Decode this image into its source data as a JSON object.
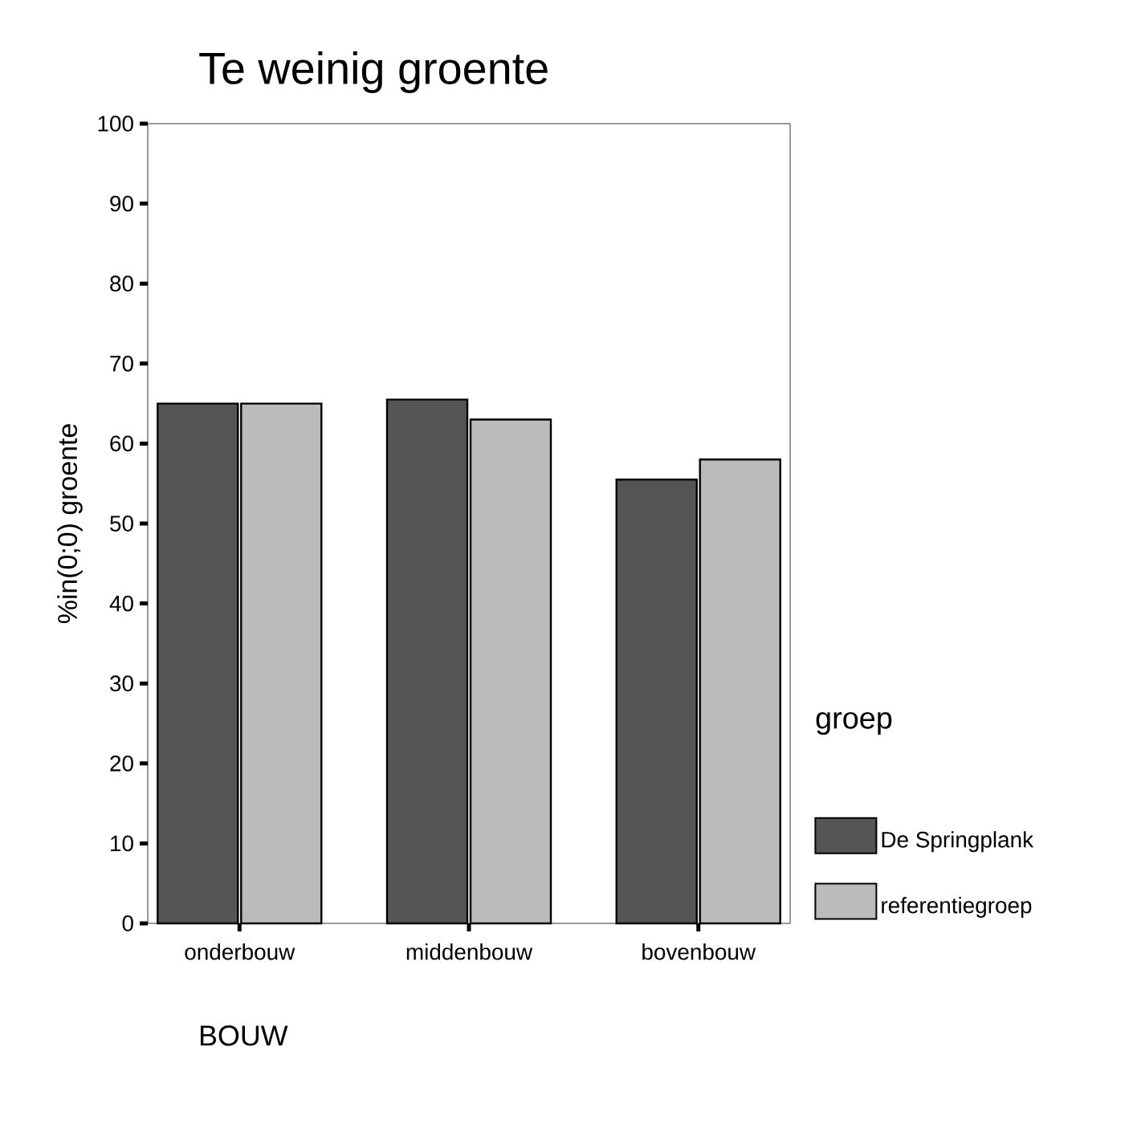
{
  "chart_data": {
    "type": "bar",
    "title": "Te weinig groente",
    "xlabel": "BOUW",
    "ylabel": "%in(0;0) groente",
    "legend_title": "groep",
    "categories": [
      "onderbouw",
      "middenbouw",
      "bovenbouw"
    ],
    "series": [
      {
        "name": "De Springplank",
        "color": "#555555",
        "values": [
          65,
          65.5,
          55.5
        ]
      },
      {
        "name": "referentiegroep",
        "color": "#bbbbbb",
        "values": [
          65,
          63,
          58
        ]
      }
    ],
    "ylim": [
      0,
      100
    ],
    "yticks": [
      0,
      10,
      20,
      30,
      40,
      50,
      60,
      70,
      80,
      90,
      100
    ],
    "grid": false,
    "legend": "right"
  }
}
